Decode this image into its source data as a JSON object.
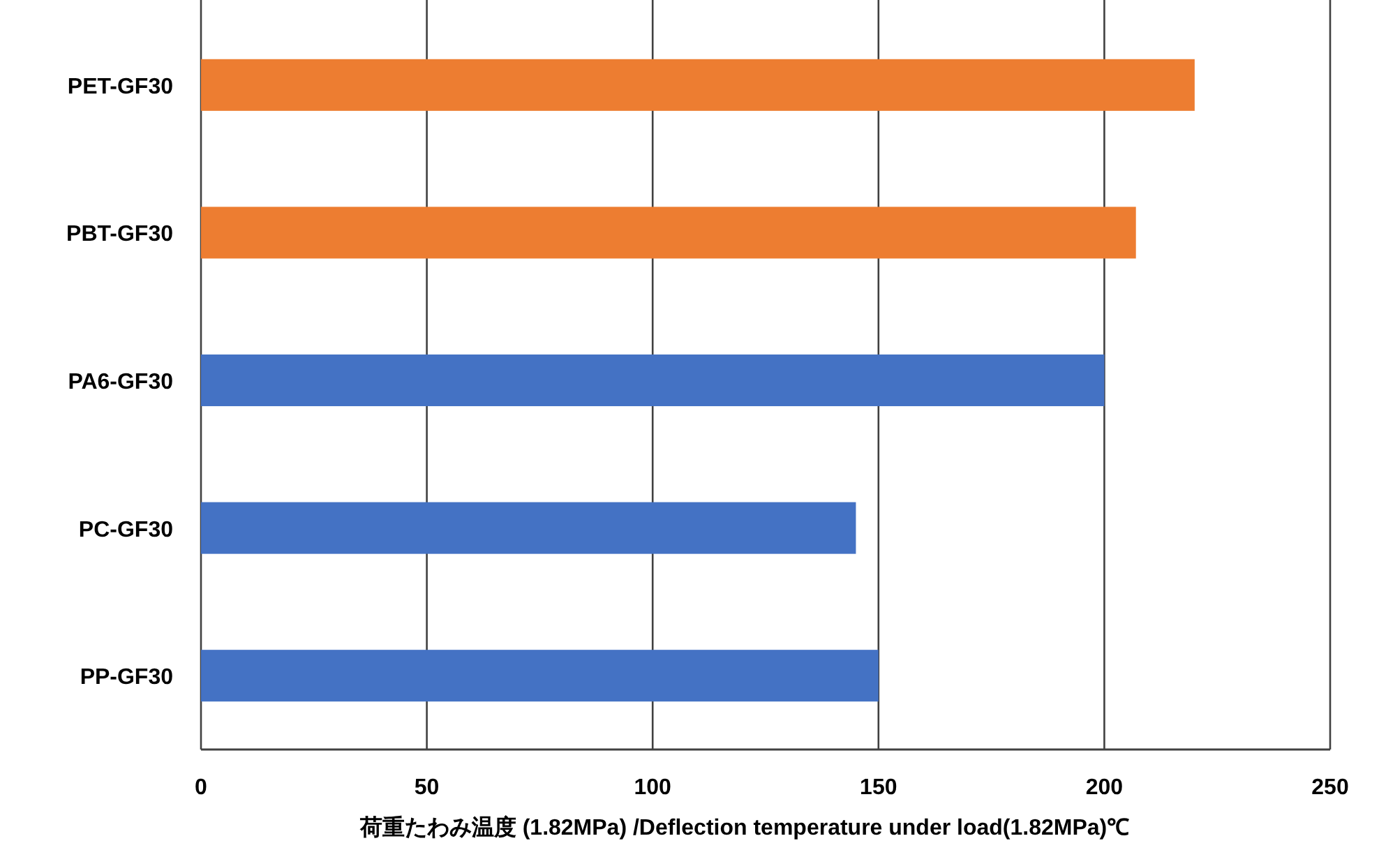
{
  "chart_data": {
    "type": "bar",
    "orientation": "horizontal",
    "categories": [
      "PET-GF30",
      "PBT-GF30",
      "PA6-GF30",
      "PC-GF30",
      "PP-GF30"
    ],
    "values": [
      220,
      207,
      200,
      145,
      150
    ],
    "colors": [
      "#ed7d31",
      "#ed7d31",
      "#4472c4",
      "#4472c4",
      "#4472c4"
    ],
    "xlabel": "荷重たわみ温度 (1.82MPa) /Deflection temperature under load(1.82MPa)℃",
    "xlim": [
      0,
      250
    ],
    "xticks": [
      0,
      50,
      100,
      150,
      200,
      250
    ],
    "grid": "x"
  }
}
